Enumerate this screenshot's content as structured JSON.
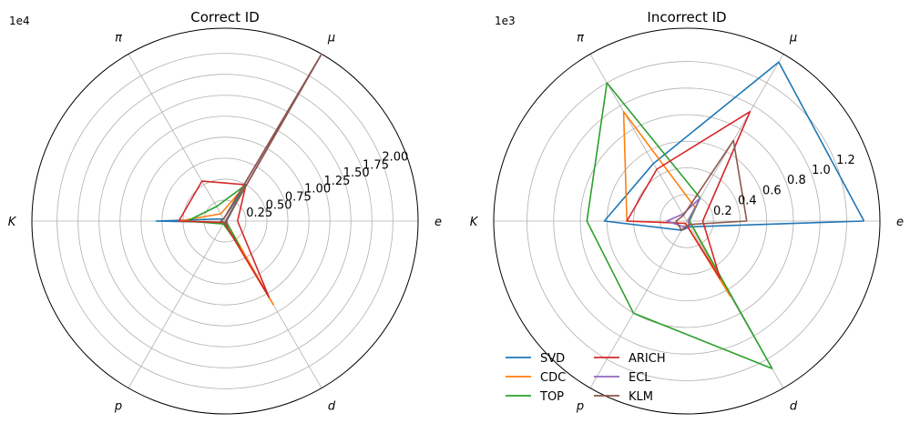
{
  "chart_data": [
    {
      "type": "radar",
      "title": "Correct ID",
      "axes": [
        "e",
        "μ",
        "π",
        "K",
        "p",
        "d"
      ],
      "scale_label": "1e4",
      "rmax": 2.3,
      "rticks": [
        0.25,
        0.5,
        0.75,
        1.0,
        1.25,
        1.5,
        1.75,
        2.0
      ],
      "rtick_labels": [
        "0.25",
        "0.50",
        "0.75",
        "1.00",
        "1.25",
        "1.50",
        "1.75",
        "2.00"
      ],
      "grid": true,
      "series": [
        {
          "name": "SVD",
          "color": "#1f77b4",
          "values": [
            0.02,
            0.5,
            0.03,
            0.82,
            0.02,
            0.08
          ]
        },
        {
          "name": "CDC",
          "color": "#ff7f0e",
          "values": [
            0.01,
            0.5,
            0.1,
            0.55,
            0.02,
            1.15
          ]
        },
        {
          "name": "TOP",
          "color": "#2ca02c",
          "values": [
            0.01,
            0.5,
            0.2,
            0.45,
            0.04,
            0.35
          ]
        },
        {
          "name": "ARICH",
          "color": "#d62728",
          "values": [
            0.15,
            0.5,
            0.55,
            0.55,
            0.02,
            1.05
          ]
        },
        {
          "name": "ECL",
          "color": "#9467bd",
          "values": [
            0.01,
            2.3,
            0.03,
            0.05,
            0.02,
            0.03
          ]
        },
        {
          "name": "KLM",
          "color": "#8c564b",
          "values": [
            0.01,
            2.28,
            0.03,
            0.05,
            0.02,
            0.03
          ]
        }
      ]
    },
    {
      "type": "radar",
      "title": "Incorrect ID",
      "axes": [
        "e",
        "μ",
        "π",
        "K",
        "p",
        "d"
      ],
      "scale_label": "1e3",
      "rmax": 1.45,
      "rticks": [
        0.2,
        0.4,
        0.6,
        0.8,
        1.0,
        1.2
      ],
      "rtick_labels": [
        "0.2",
        "0.4",
        "0.6",
        "0.8",
        "1.0",
        "1.2"
      ],
      "grid": true,
      "series": [
        {
          "name": "SVD",
          "color": "#1f77b4",
          "values": [
            1.33,
            1.38,
            0.5,
            0.62,
            0.08,
            0.05
          ]
        },
        {
          "name": "CDC",
          "color": "#ff7f0e",
          "values": [
            0.02,
            0.12,
            0.95,
            0.45,
            0.02,
            0.65
          ]
        },
        {
          "name": "TOP",
          "color": "#2ca02c",
          "values": [
            0.02,
            0.2,
            1.2,
            0.75,
            0.8,
            1.28
          ]
        },
        {
          "name": "ARICH",
          "color": "#d62728",
          "values": [
            0.12,
            0.95,
            0.45,
            0.45,
            0.02,
            0.5
          ]
        },
        {
          "name": "ECL",
          "color": "#9467bd",
          "values": [
            0.01,
            0.2,
            0.06,
            0.15,
            0.05,
            0.04
          ]
        },
        {
          "name": "KLM",
          "color": "#8c564b",
          "values": [
            0.45,
            0.7,
            0.05,
            0.08,
            0.08,
            0.03
          ]
        }
      ]
    }
  ],
  "legend": {
    "placement": "lower-left of right panel, two columns",
    "entries": [
      "SVD",
      "CDC",
      "TOP",
      "ARICH",
      "ECL",
      "KLM"
    ]
  }
}
